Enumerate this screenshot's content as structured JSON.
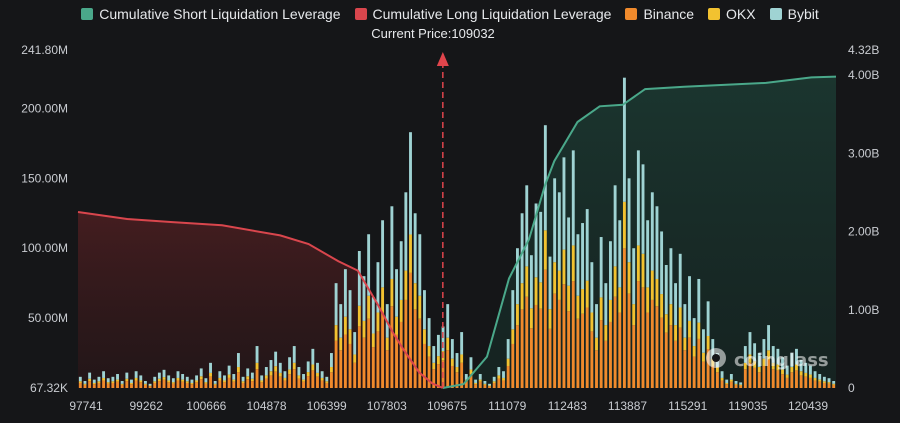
{
  "legend": [
    {
      "label": "Cumulative Short Liquidation Leverage",
      "color": "#4aa88a"
    },
    {
      "label": "Cumulative Long Liquidation Leverage",
      "color": "#d9464d"
    },
    {
      "label": "Binance",
      "color": "#f08a2c"
    },
    {
      "label": "OKX",
      "color": "#f2c230"
    },
    {
      "label": "Bybit",
      "color": "#9fd3d3"
    }
  ],
  "current_price_label": "Current Price:109032",
  "watermark": "coinglass",
  "chart_data": {
    "type": "bar",
    "x_tick_labels": [
      "97741",
      "99262",
      "100666",
      "104878",
      "106399",
      "107803",
      "109675",
      "111079",
      "112483",
      "113887",
      "115291",
      "119035",
      "120439"
    ],
    "y_left_ticks": [
      "67.32K",
      "50.00M",
      "100.00M",
      "150.00M",
      "200.00M",
      "241.80M"
    ],
    "y_left_tick_values": [
      0,
      50,
      100,
      150,
      200,
      241.8
    ],
    "y_right_ticks": [
      "0",
      "1.00B",
      "2.00B",
      "3.00B",
      "4.00B",
      "4.32B"
    ],
    "y_right_tick_values": [
      0,
      1,
      2,
      3,
      4,
      4.32
    ],
    "y_left_unit": "M",
    "y_right_unit": "B",
    "current_price": 109032,
    "bars_total_M": [
      8,
      5,
      11,
      6,
      8,
      12,
      7,
      8,
      10,
      5,
      11,
      6,
      12,
      9,
      5,
      3,
      8,
      11,
      13,
      9,
      7,
      12,
      10,
      8,
      6,
      9,
      14,
      7,
      18,
      5,
      12,
      9,
      16,
      10,
      25,
      8,
      14,
      11,
      30,
      9,
      15,
      20,
      26,
      18,
      12,
      22,
      30,
      15,
      10,
      19,
      28,
      18,
      12,
      8,
      25,
      75,
      60,
      85,
      70,
      40,
      98,
      80,
      110,
      65,
      90,
      120,
      60,
      130,
      85,
      105,
      140,
      183,
      125,
      110,
      70,
      50,
      30,
      38,
      44,
      60,
      35,
      25,
      40,
      10,
      22,
      6,
      10,
      5,
      3,
      8,
      15,
      12,
      35,
      70,
      100,
      125,
      145,
      95,
      132,
      126,
      188,
      94,
      150,
      140,
      165,
      122,
      170,
      110,
      118,
      128,
      90,
      60,
      108,
      75,
      105,
      145,
      120,
      222,
      150,
      100,
      170,
      160,
      120,
      140,
      130,
      112,
      88,
      100,
      75,
      96,
      60,
      80,
      50,
      78,
      42,
      62,
      35,
      25,
      12,
      6,
      10,
      5,
      4,
      30,
      40,
      32,
      25,
      35,
      45,
      30,
      28,
      22,
      16,
      25,
      28,
      20,
      18,
      16,
      12,
      10,
      8,
      7,
      5
    ],
    "long_cumulative_B": [
      [
        97741,
        2.25
      ],
      [
        99262,
        2.16
      ],
      [
        100666,
        2.12
      ],
      [
        102200,
        2.08
      ],
      [
        104000,
        1.95
      ],
      [
        104878,
        1.84
      ],
      [
        105800,
        1.62
      ],
      [
        106399,
        1.5
      ],
      [
        107000,
        1.08
      ],
      [
        107500,
        0.7
      ],
      [
        107803,
        0.5
      ],
      [
        108300,
        0.2
      ],
      [
        108700,
        0.06
      ],
      [
        109032,
        0.0
      ]
    ],
    "short_cumulative_B": [
      [
        109032,
        0.0
      ],
      [
        109675,
        0.05
      ],
      [
        110400,
        0.4
      ],
      [
        111079,
        1.4
      ],
      [
        111700,
        1.9
      ],
      [
        112200,
        2.6
      ],
      [
        112483,
        2.9
      ],
      [
        113200,
        3.4
      ],
      [
        113887,
        3.6
      ],
      [
        114600,
        3.62
      ],
      [
        115291,
        3.82
      ],
      [
        116500,
        3.85
      ],
      [
        119035,
        3.9
      ],
      [
        120439,
        3.97
      ],
      [
        121200,
        3.98
      ]
    ],
    "x_domain": [
      97741,
      121200
    ]
  }
}
